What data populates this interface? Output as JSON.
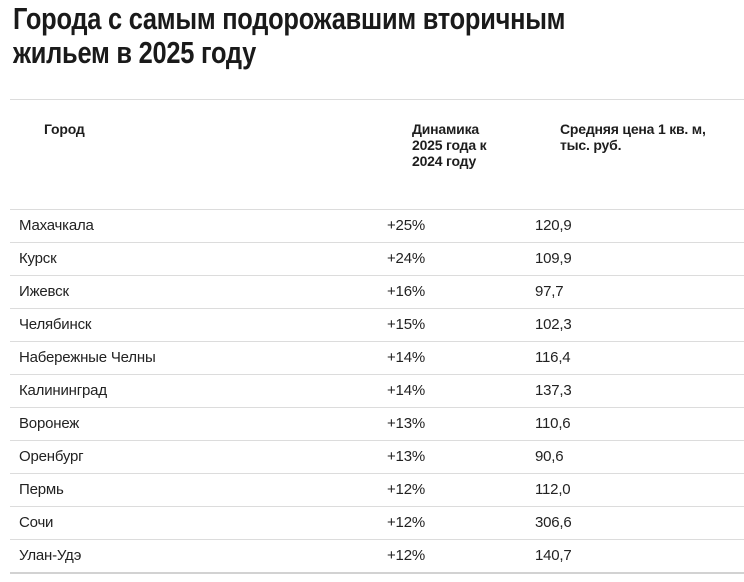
{
  "title": {
    "line1": "Города с самым подорожавшим вторичным",
    "line2": "жильем в 2025 году"
  },
  "table": {
    "headers": {
      "city": "Город",
      "dynamics": "Динамика 2025 года к 2024 году",
      "price": "Средняя цена 1 кв. м, тыс. руб."
    },
    "rows": [
      {
        "city": "Махачкала",
        "dynamics": "+25%",
        "price": "120,9"
      },
      {
        "city": "Курск",
        "dynamics": "+24%",
        "price": "109,9"
      },
      {
        "city": "Ижевск",
        "dynamics": "+16%",
        "price": "97,7"
      },
      {
        "city": "Челябинск",
        "dynamics": "+15%",
        "price": "102,3"
      },
      {
        "city": "Набережные Челны",
        "dynamics": "+14%",
        "price": "116,4"
      },
      {
        "city": "Калининград",
        "dynamics": "+14%",
        "price": "137,3"
      },
      {
        "city": "Воронеж",
        "dynamics": "+13%",
        "price": "110,6"
      },
      {
        "city": "Оренбург",
        "dynamics": "+13%",
        "price": "90,6"
      },
      {
        "city": "Пермь",
        "dynamics": "+12%",
        "price": "112,0"
      },
      {
        "city": "Сочи",
        "dynamics": "+12%",
        "price": "306,6"
      },
      {
        "city": "Улан-Удэ",
        "dynamics": "+12%",
        "price": "140,7"
      }
    ]
  }
}
